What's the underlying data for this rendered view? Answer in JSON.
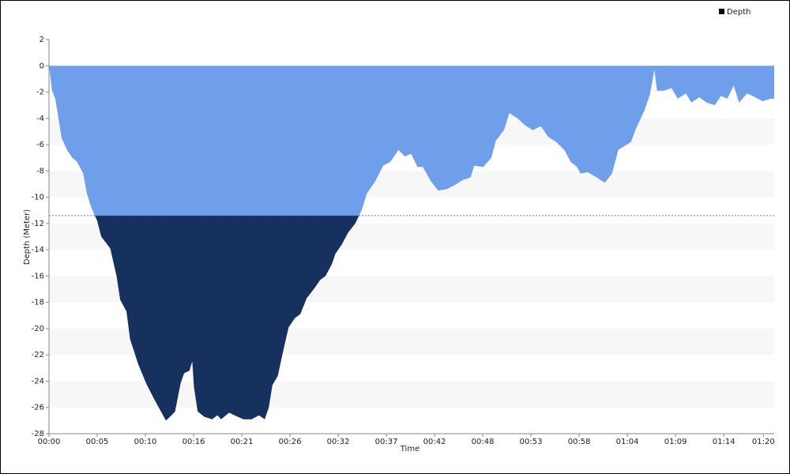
{
  "chart_data": {
    "type": "area",
    "x_label": "Time",
    "y_label": "Depth (Meter)",
    "x": [
      0,
      0.35,
      0.7,
      1.05,
      1.4,
      2,
      2.6,
      3.1,
      3.8,
      4.2,
      4.7,
      5.35,
      5.8,
      6.8,
      7.5,
      7.9,
      8.6,
      9,
      9.9,
      10.8,
      11.7,
      12.5,
      12.98,
      13.6,
      14,
      14.6,
      15,
      15.6,
      15.9,
      16.1,
      16.5,
      17.2,
      18.1,
      18.7,
      19.1,
      20,
      20.9,
      21.6,
      22.5,
      23.3,
      23.95,
      24.4,
      24.8,
      25.4,
      25.9,
      26.6,
      27.3,
      27.9,
      28.6,
      29.5,
      30.1,
      30.7,
      31.4,
      31.8,
      32.5,
      33.2,
      34,
      34.7,
      35.3,
      36.2,
      37.1,
      37.9,
      38.8,
      39.5,
      40.2,
      40.9,
      41.5,
      42.4,
      43.2,
      44.1,
      45,
      45.9,
      46.8,
      47.2,
      48.2,
      49.1,
      49.6,
      50.5,
      51.1,
      52,
      52.8,
      53.7,
      54.6,
      55.4,
      56.3,
      57.2,
      57.9,
      58.6,
      59,
      59.8,
      60.8,
      61.7,
      62.5,
      63.2,
      63.9,
      64.6,
      65.2,
      66.1,
      66.7,
      67.2,
      67.5,
      68.2,
      69.1,
      69.8,
      70.7,
      71.3,
      72.2,
      73,
      73.9,
      74.6,
      75.3,
      76,
      76.6,
      77.5,
      78.4,
      79.2,
      80.1,
      80.5
    ],
    "series": [
      {
        "name": "Depth",
        "color": "#6f9fea",
        "deep_color": "#17315e",
        "values": [
          0,
          -1.9,
          -2.5,
          -4,
          -5.5,
          -6.4,
          -7,
          -7.3,
          -8.2,
          -9.7,
          -10.8,
          -11.8,
          -13,
          -13.9,
          -16,
          -17.8,
          -18.7,
          -20.8,
          -22.7,
          -24.2,
          -25.4,
          -26.4,
          -27,
          -26.6,
          -26.3,
          -24.2,
          -23.4,
          -23.2,
          -22.5,
          -24.5,
          -26.3,
          -26.7,
          -26.9,
          -26.6,
          -26.9,
          -26.4,
          -26.7,
          -26.9,
          -26.9,
          -26.6,
          -26.9,
          -26,
          -24.3,
          -23.6,
          -22,
          -19.9,
          -19.2,
          -18.9,
          -17.7,
          -16.9,
          -16.3,
          -16,
          -15.1,
          -14.3,
          -13.6,
          -12.7,
          -12,
          -11,
          -9.7,
          -8.8,
          -7.6,
          -7.3,
          -6.4,
          -6.9,
          -6.7,
          -7.7,
          -7.7,
          -8.8,
          -9.5,
          -9.4,
          -9.1,
          -8.7,
          -8.5,
          -7.6,
          -7.7,
          -7,
          -5.7,
          -4.9,
          -3.6,
          -4,
          -4.5,
          -4.9,
          -4.6,
          -5.4,
          -5.8,
          -6.4,
          -7.3,
          -7.7,
          -8.2,
          -8.1,
          -8.5,
          -8.9,
          -8.2,
          -6.4,
          -6.1,
          -5.8,
          -4.7,
          -3.4,
          -2.2,
          -0.3,
          -1.9,
          -1.9,
          -1.7,
          -2.5,
          -2.1,
          -2.8,
          -2.4,
          -2.8,
          -3,
          -2.3,
          -2.5,
          -1.5,
          -2.8,
          -2.1,
          -2.4,
          -2.7,
          -2.5,
          -2.5
        ]
      }
    ],
    "reference_line": -11.4,
    "xlim": [
      0,
      80.5
    ],
    "xticks": [
      {
        "value": 0,
        "label": "00:00"
      },
      {
        "value": 5.35,
        "label": "00:05"
      },
      {
        "value": 10.7,
        "label": "00:10"
      },
      {
        "value": 16.05,
        "label": "00:16"
      },
      {
        "value": 21.4,
        "label": "00:21"
      },
      {
        "value": 26.75,
        "label": "00:26"
      },
      {
        "value": 32.1,
        "label": "00:32"
      },
      {
        "value": 37.45,
        "label": "00:37"
      },
      {
        "value": 42.8,
        "label": "00:42"
      },
      {
        "value": 48.15,
        "label": "00:48"
      },
      {
        "value": 53.5,
        "label": "00:53"
      },
      {
        "value": 58.85,
        "label": "00:58"
      },
      {
        "value": 64.2,
        "label": "01:04"
      },
      {
        "value": 69.55,
        "label": "01:09"
      },
      {
        "value": 74.9,
        "label": "01:14"
      },
      {
        "value": 79.3,
        "label": "01:20"
      }
    ],
    "ylim": [
      -28,
      2
    ],
    "yticks": [
      2,
      0,
      -2,
      -4,
      -6,
      -8,
      -10,
      -12,
      -14,
      -16,
      -18,
      -20,
      -22,
      -24,
      -26,
      -28
    ],
    "grid": "bands"
  }
}
